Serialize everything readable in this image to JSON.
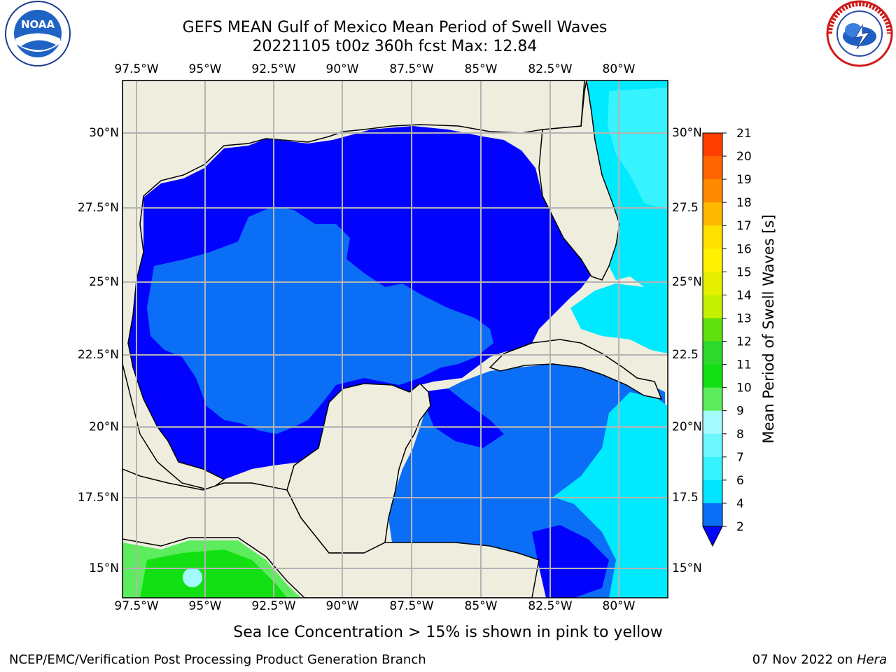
{
  "header": {
    "title_line1": "GEFS MEAN Gulf of Mexico Mean Period of Swell Waves",
    "title_line2": "20221105 t00z 360h fcst   Max: 12.84"
  },
  "map": {
    "lon_ticks": [
      "97.5°W",
      "95°W",
      "92.5°W",
      "90°W",
      "87.5°W",
      "85°W",
      "82.5°W",
      "80°W"
    ],
    "lat_ticks": [
      "30°N",
      "27.5°N",
      "25°N",
      "22.5°N",
      "20°N",
      "17.5°N",
      "15°N"
    ],
    "lat_ticks_right": [
      "30°N",
      "27.5",
      "25°N",
      "22.5",
      "20°N",
      "17.5",
      "15°N"
    ],
    "colors": {
      "land": "#efedde",
      "ocean_deep": "#0202ff",
      "ocean_mid": "#0a6ef7",
      "ocean_cyan": "#00eaff",
      "ocean_light": "#36f3ff",
      "green": "#12e012",
      "light_green": "#5dec5d",
      "grid": "#b4b4b4"
    }
  },
  "colorbar": {
    "label": "Mean Period of Swell Waves [s]",
    "ticks": [
      "2",
      "4",
      "6",
      "7",
      "8",
      "9",
      "10",
      "11",
      "12",
      "13",
      "14",
      "15",
      "16",
      "17",
      "18",
      "19",
      "20",
      "21"
    ],
    "tick_labels": [
      "21",
      "20",
      "19",
      "18",
      "17",
      "16",
      "15",
      "14",
      "13",
      "12",
      "11",
      "10",
      "9",
      "8",
      "7",
      "6",
      "4",
      "2"
    ],
    "colors": [
      "#0a6ef7",
      "#00e4ff",
      "#36f3ff",
      "#6cf7ff",
      "#a4fbff",
      "#5dec5d",
      "#12e012",
      "#2ed92e",
      "#60e00f",
      "#c6f000",
      "#e6ef00",
      "#fff100",
      "#ffe100",
      "#ffb800",
      "#ff8a00",
      "#ff6500",
      "#ff3f00",
      "#ff1400"
    ],
    "extend_color": "#0202ff"
  },
  "footer": {
    "note": "Sea Ice Concentration > 15% is shown in pink to yellow",
    "credit": "NCEP/EMC/Verification Post Processing Product Generation Branch",
    "date": "07 Nov 2022 on ",
    "machine": "Hera"
  },
  "logos": {
    "left_text": "NOAA",
    "right_text": "NATIONAL WEATHER SERVICE"
  }
}
